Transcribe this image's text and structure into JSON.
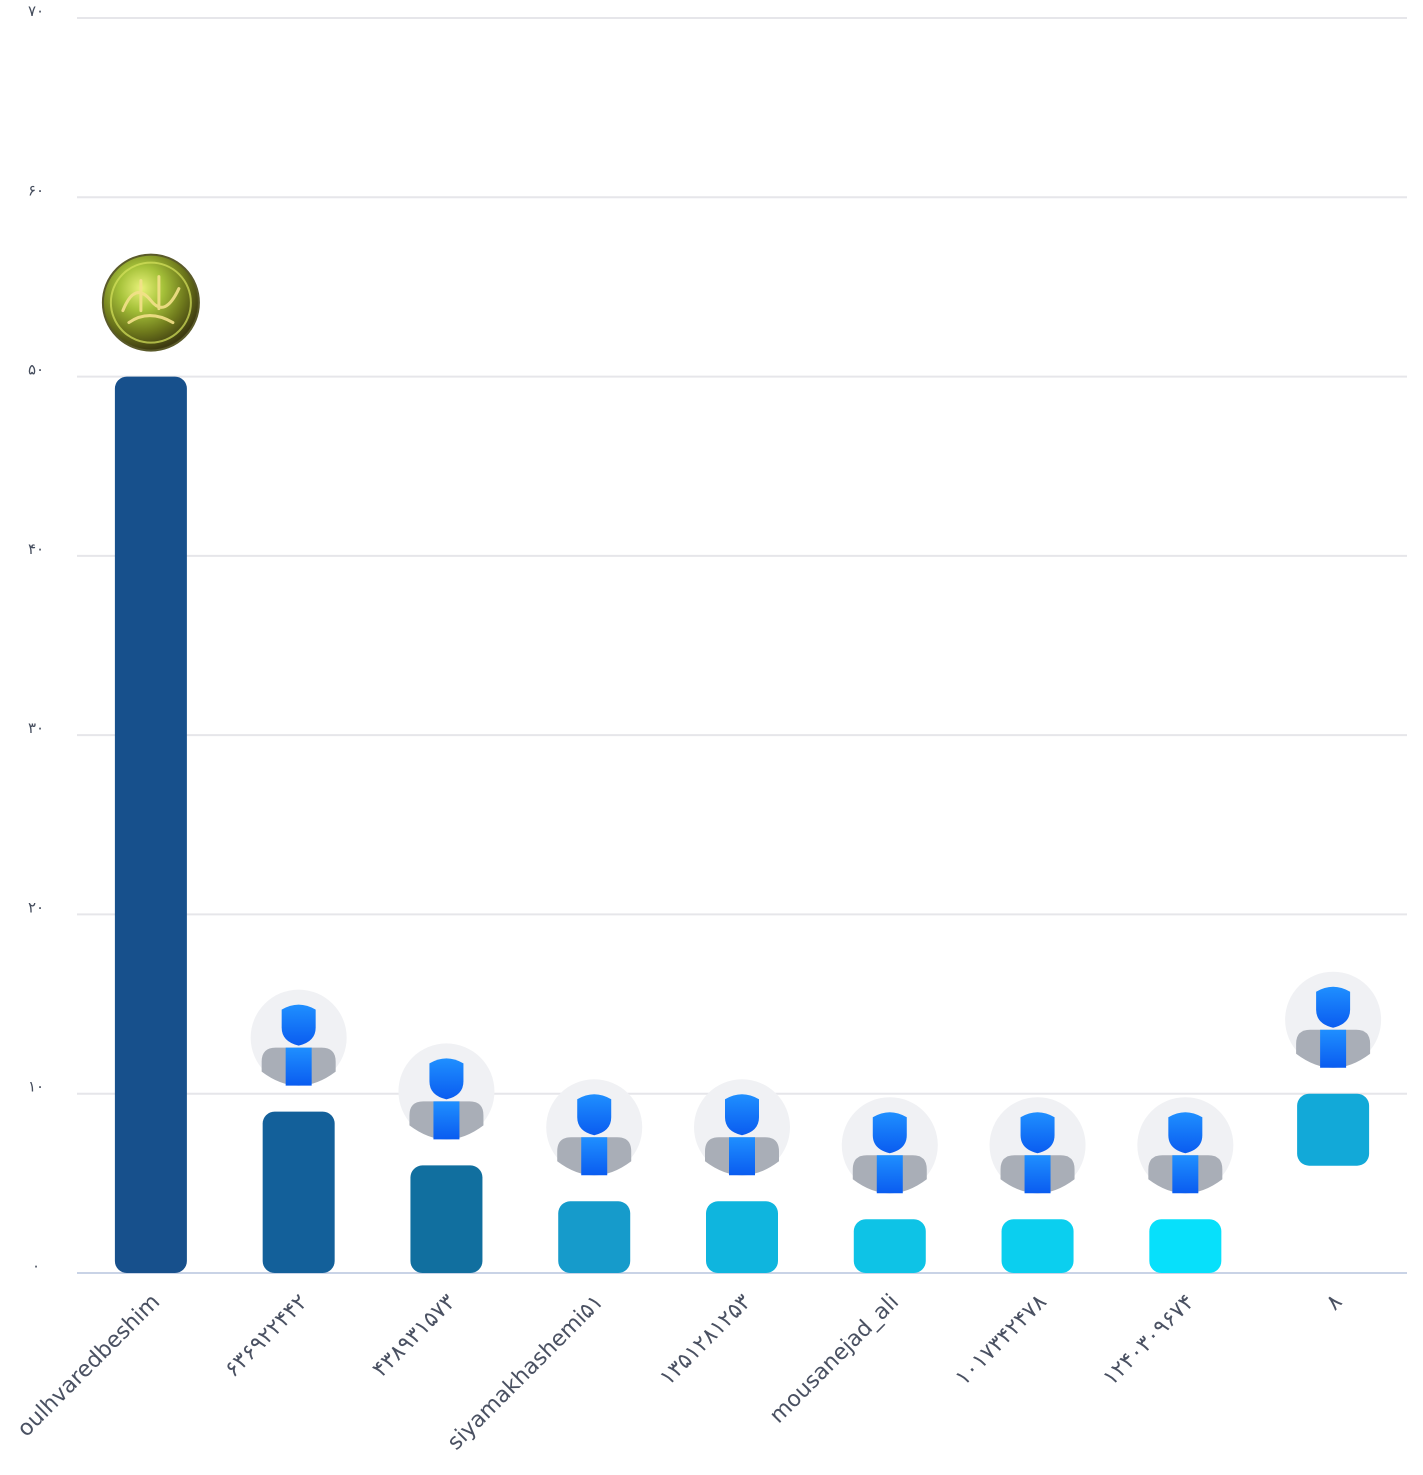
{
  "chart_data": {
    "type": "bar",
    "title": "",
    "xlabel": "",
    "ylabel": "",
    "ylim": [
      0,
      70
    ],
    "yticks": [
      0,
      10,
      20,
      30,
      40,
      50,
      60,
      70
    ],
    "ytick_labels": [
      "۰",
      "۱۰",
      "۲۰",
      "۳۰",
      "۴۰",
      "۵۰",
      "۶۰",
      "۷۰"
    ],
    "grid": true,
    "legend": "none",
    "categories": [
      "oulhvaredbeshim",
      "۶۳۶۹۲۲۴۴۲",
      "۴۳۸۹۳۱۵۷۳",
      "siyamakhashemi۵۱",
      "۱۳۵۱۲۸۱۲۵۳",
      "mousanejad_ali",
      "۱۰۱۷۳۴۲۴۷۸",
      "۱۲۴۰۳۰۹۶۷۴",
      "۸"
    ],
    "values": [
      50,
      9,
      6,
      4,
      4,
      3,
      3,
      3,
      10
    ],
    "bar_colors": [
      "#17508c",
      "#13609a",
      "#116f9f",
      "#169bcb",
      "#0fb5de",
      "#0ec3e6",
      "#0bcfef",
      "#07e0fb",
      "#12a9d8"
    ],
    "avatars": [
      "emblem-avatar-icon",
      "default-user-avatar-icon",
      "default-user-avatar-icon",
      "default-user-avatar-icon",
      "default-user-avatar-icon",
      "default-user-avatar-icon",
      "default-user-avatar-icon",
      "default-user-avatar-icon",
      "default-user-avatar-icon"
    ]
  }
}
